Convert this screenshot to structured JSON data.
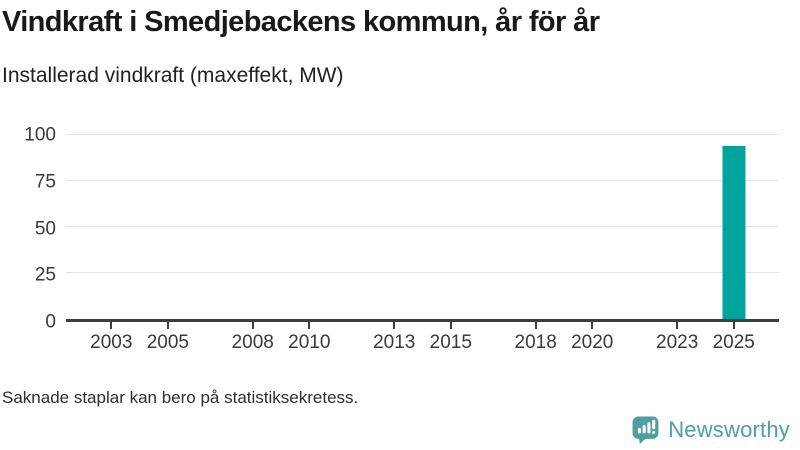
{
  "header": {
    "title": "Vindkraft i Smedjebackens kommun, år för år",
    "subtitle": "Installerad vindkraft (maxeffekt, MW)"
  },
  "chart_data": {
    "type": "bar",
    "title": "Vindkraft i Smedjebackens kommun, år för år",
    "subtitle": "Installerad vindkraft (maxeffekt, MW)",
    "xlabel": "",
    "ylabel": "Installerad vindkraft (maxeffekt, MW)",
    "ylim": [
      0,
      100
    ],
    "yticks": [
      0,
      25,
      50,
      75,
      100
    ],
    "xlim": [
      2001.4,
      2026.6
    ],
    "xticks": [
      2003,
      2005,
      2008,
      2010,
      2013,
      2015,
      2018,
      2020,
      2023,
      2025
    ],
    "grid": "horizontal",
    "legend": false,
    "bars": [
      {
        "x": 2025,
        "value": 94
      }
    ],
    "bar_color": "#00a49c",
    "missing_note": "Saknade staplar kan bero på statistiksekretess."
  },
  "footer": {
    "note": "Saknade staplar kan bero på statistiksekretess.",
    "brand": "Newsworthy",
    "brand_color": "#4d9fa0"
  }
}
